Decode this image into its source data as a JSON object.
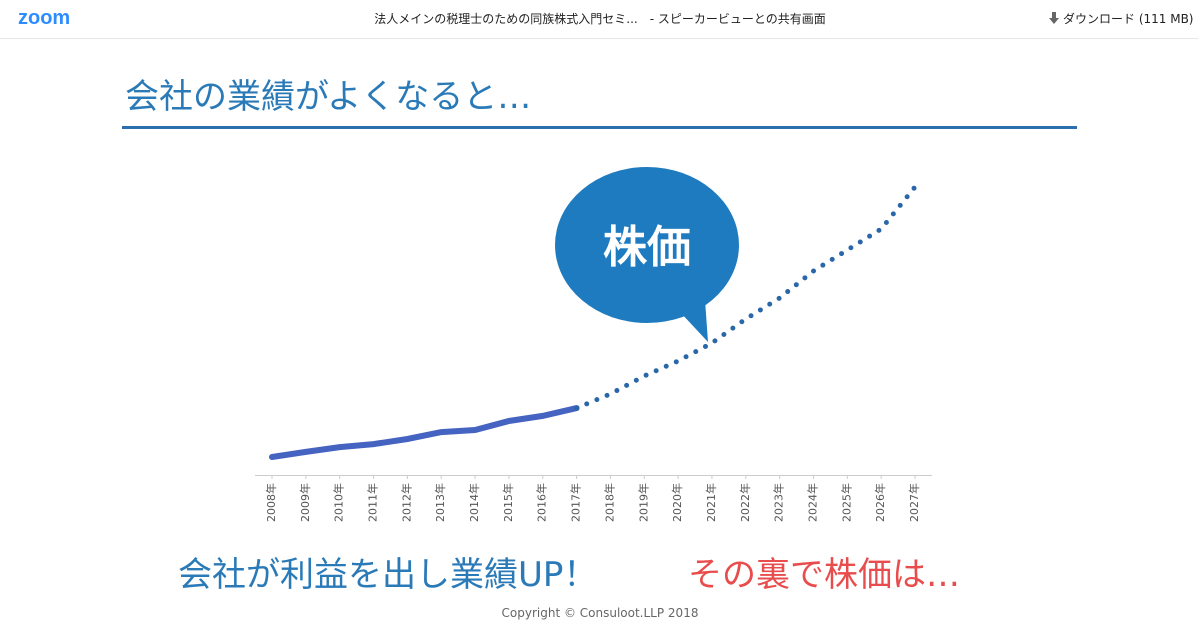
{
  "header": {
    "logo": "zoom",
    "title": "法人メインの税理士のための同族株式入門セミ...　- スピーカービューとの共有画面",
    "download": "ダウンロード (111 MB)"
  },
  "slide": {
    "title": "会社の業績がよくなると…",
    "bubble": "株価",
    "message": "会社が利益を出し業績UP！",
    "message2": "その裏で株価は…",
    "copyright": "Copyright © Consuloot.LLP 2018"
  },
  "chart_data": {
    "type": "line",
    "categories": [
      "2008年",
      "2009年",
      "2010年",
      "2011年",
      "2012年",
      "2013年",
      "2014年",
      "2015年",
      "2016年",
      "2017年",
      "2018年",
      "2019年",
      "2020年",
      "2021年",
      "2022年",
      "2023年",
      "2024年",
      "2025年",
      "2026年",
      "2027年"
    ],
    "ylim": [
      0,
      100
    ],
    "series": [
      {
        "color": "#4563c0",
        "style": "solid",
        "values": [
          6,
          7.7,
          9.3,
          10.3,
          12,
          14.3,
          15,
          18,
          19.7,
          22.3,
          null,
          null,
          null,
          null,
          null,
          null,
          null,
          null,
          null,
          null
        ]
      },
      {
        "color": "#2a67a8",
        "style": "dotted",
        "values": [
          null,
          null,
          null,
          null,
          null,
          null,
          null,
          null,
          null,
          22.3,
          27,
          33,
          38,
          44,
          52,
          59,
          68,
          75,
          82,
          96
        ]
      }
    ]
  }
}
